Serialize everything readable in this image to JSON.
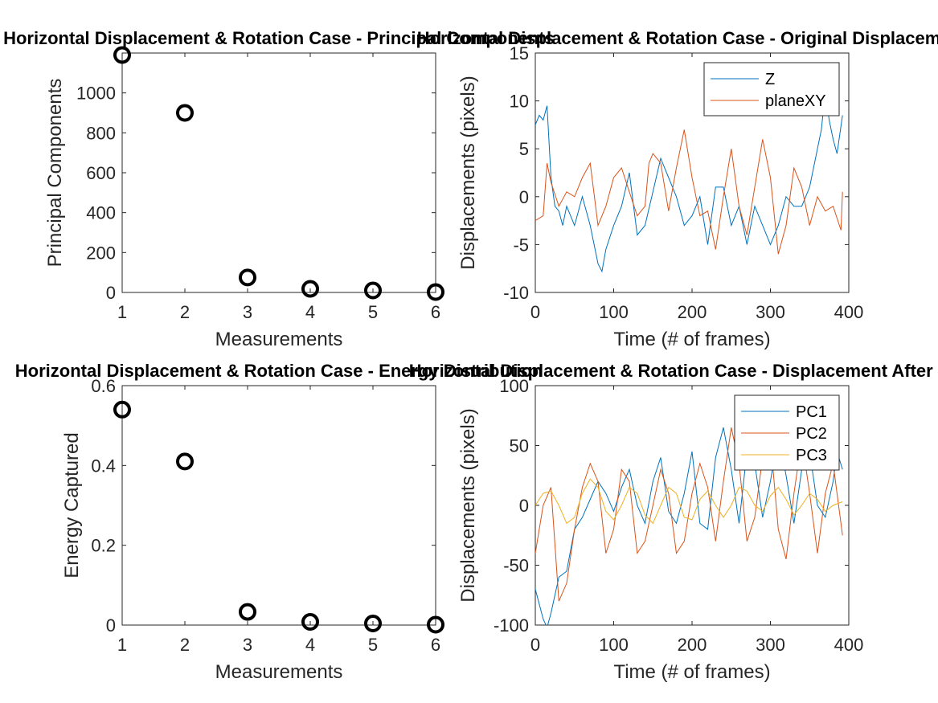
{
  "chart_data": [
    {
      "type": "scatter",
      "title": "Horizontal Displacement & Rotation Case - Principal Components",
      "xlabel": "Measurements",
      "ylabel": "Principal Components",
      "xlim": [
        1,
        6
      ],
      "ylim": [
        0,
        1200
      ],
      "xticks": [
        1,
        2,
        3,
        4,
        5,
        6
      ],
      "yticks": [
        0,
        200,
        400,
        600,
        800,
        1000
      ],
      "grid": false,
      "marker": "circle",
      "marker_color": "#000000",
      "x": [
        1,
        2,
        3,
        4,
        5,
        6
      ],
      "y": [
        1190,
        900,
        75,
        18,
        10,
        2
      ]
    },
    {
      "type": "line",
      "title": "Horizontal Displacement & Rotation Case - Original Displacement",
      "xlabel": "Time (# of frames)",
      "ylabel": "Displacements (pixels)",
      "xlim": [
        0,
        400
      ],
      "ylim": [
        -10,
        15
      ],
      "xticks": [
        0,
        100,
        200,
        300,
        400
      ],
      "yticks": [
        -10,
        -5,
        0,
        5,
        10,
        15
      ],
      "grid": false,
      "legend_position": "top-right",
      "series": [
        {
          "name": "Z",
          "color": "#0072BD",
          "x": [
            0,
            5,
            10,
            15,
            20,
            25,
            30,
            35,
            40,
            50,
            60,
            70,
            80,
            85,
            90,
            100,
            110,
            120,
            130,
            140,
            150,
            160,
            170,
            180,
            190,
            200,
            210,
            220,
            230,
            240,
            250,
            260,
            270,
            280,
            290,
            300,
            310,
            320,
            330,
            340,
            350,
            360,
            365,
            370,
            375,
            380,
            385,
            392
          ],
          "y": [
            7.5,
            8.5,
            8,
            9.5,
            2,
            -1,
            -1.5,
            -3,
            -1,
            -3,
            0,
            -3,
            -7,
            -7.8,
            -5.5,
            -3,
            -1,
            2.5,
            -4,
            -3,
            0.5,
            4,
            2,
            0,
            -3,
            -2,
            0,
            -5,
            1,
            1,
            -3,
            -1,
            -5,
            -1,
            -3,
            -5,
            -3,
            0,
            -1,
            -1,
            1,
            5,
            7,
            11,
            8,
            6,
            4.5,
            8.5
          ]
        },
        {
          "name": "planeXY",
          "color": "#D95319",
          "x": [
            0,
            10,
            15,
            20,
            30,
            40,
            50,
            60,
            70,
            80,
            90,
            100,
            110,
            120,
            130,
            140,
            145,
            150,
            160,
            170,
            180,
            190,
            200,
            210,
            220,
            230,
            240,
            250,
            260,
            270,
            280,
            290,
            300,
            310,
            320,
            330,
            340,
            350,
            360,
            370,
            380,
            390,
            392
          ],
          "y": [
            -2.5,
            -2,
            3.5,
            1.5,
            -1,
            0.5,
            0,
            2,
            3.5,
            -3,
            -1,
            2,
            3,
            0.5,
            -2,
            -1,
            3.5,
            4.5,
            3.5,
            -1.5,
            3,
            7,
            2,
            -2,
            -1.5,
            -5.5,
            0,
            5,
            -1,
            -4,
            1,
            6,
            2,
            -6,
            -3,
            3,
            1,
            -3,
            0,
            -1.5,
            -1,
            -3.5,
            0.5
          ]
        }
      ]
    },
    {
      "type": "scatter",
      "title": "Horizontal Displacement & Rotation Case - Energy Distribution",
      "xlabel": "Measurements",
      "ylabel": "Energy Captured",
      "xlim": [
        1,
        6
      ],
      "ylim": [
        0,
        0.6
      ],
      "xticks": [
        1,
        2,
        3,
        4,
        5,
        6
      ],
      "yticks": [
        0,
        0.2,
        0.4,
        0.6
      ],
      "grid": false,
      "marker": "circle",
      "marker_color": "#000000",
      "x": [
        1,
        2,
        3,
        4,
        5,
        6
      ],
      "y": [
        0.54,
        0.41,
        0.033,
        0.008,
        0.004,
        0.001
      ]
    },
    {
      "type": "line",
      "title": "Horizontal Displacement & Rotation Case - Displacement After PCA",
      "xlabel": "Time (# of frames)",
      "ylabel": "Displacements (pixels)",
      "xlim": [
        0,
        400
      ],
      "ylim": [
        -100,
        100
      ],
      "xticks": [
        0,
        100,
        200,
        300,
        400
      ],
      "yticks": [
        -100,
        -50,
        0,
        50,
        100
      ],
      "grid": false,
      "legend_position": "top-right",
      "series": [
        {
          "name": "PC1",
          "color": "#0072BD",
          "x": [
            0,
            10,
            15,
            20,
            30,
            40,
            50,
            60,
            70,
            80,
            90,
            100,
            110,
            120,
            130,
            140,
            150,
            160,
            170,
            180,
            190,
            200,
            210,
            220,
            230,
            240,
            250,
            260,
            270,
            280,
            290,
            300,
            310,
            320,
            330,
            340,
            350,
            360,
            370,
            380,
            385,
            392
          ],
          "y": [
            -70,
            -95,
            -102,
            -90,
            -60,
            -55,
            -20,
            -10,
            5,
            20,
            10,
            -5,
            15,
            30,
            0,
            -15,
            20,
            40,
            -5,
            -15,
            10,
            45,
            -15,
            -20,
            40,
            65,
            30,
            -15,
            45,
            35,
            -10,
            20,
            60,
            25,
            -15,
            30,
            45,
            0,
            -10,
            20,
            45,
            30
          ]
        },
        {
          "name": "PC2",
          "color": "#D95319",
          "x": [
            0,
            10,
            20,
            30,
            40,
            50,
            60,
            70,
            80,
            90,
            100,
            110,
            120,
            130,
            140,
            150,
            160,
            170,
            180,
            190,
            200,
            210,
            220,
            230,
            240,
            250,
            260,
            270,
            280,
            290,
            300,
            310,
            320,
            330,
            340,
            350,
            360,
            370,
            380,
            392
          ],
          "y": [
            -40,
            0,
            15,
            -80,
            -65,
            -20,
            15,
            35,
            20,
            -40,
            -20,
            30,
            20,
            -40,
            -30,
            0,
            30,
            10,
            -40,
            -30,
            10,
            35,
            15,
            -30,
            20,
            65,
            35,
            -30,
            -10,
            40,
            55,
            -20,
            -45,
            10,
            55,
            10,
            -40,
            10,
            35,
            -25
          ]
        },
        {
          "name": "PC3",
          "color": "#EDB120",
          "x": [
            0,
            10,
            20,
            30,
            40,
            50,
            60,
            70,
            80,
            90,
            100,
            110,
            120,
            130,
            140,
            150,
            160,
            170,
            180,
            190,
            200,
            210,
            220,
            230,
            240,
            250,
            260,
            270,
            280,
            290,
            300,
            310,
            320,
            330,
            340,
            350,
            360,
            370,
            380,
            392
          ],
          "y": [
            0,
            10,
            12,
            0,
            -15,
            -10,
            10,
            22,
            15,
            -5,
            -12,
            0,
            15,
            10,
            -8,
            -15,
            0,
            15,
            10,
            -10,
            -12,
            5,
            12,
            0,
            -10,
            0,
            15,
            12,
            0,
            -5,
            8,
            15,
            5,
            -8,
            0,
            10,
            5,
            -5,
            0,
            3
          ]
        }
      ]
    }
  ]
}
